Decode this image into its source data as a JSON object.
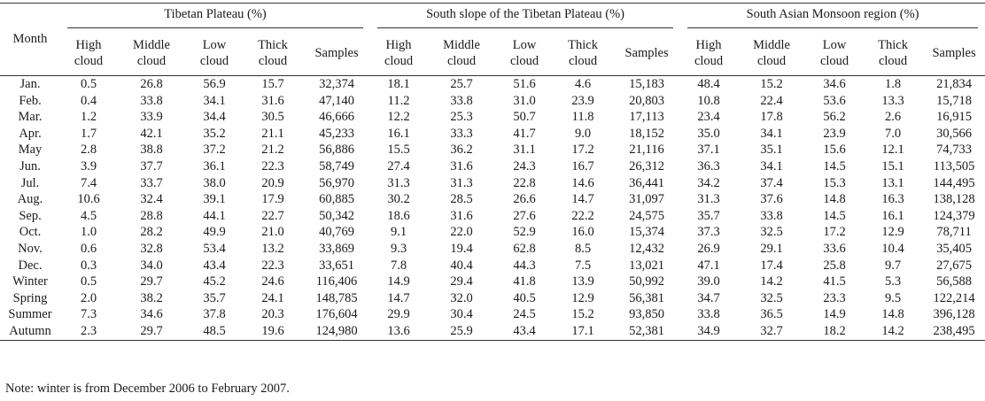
{
  "header": {
    "month": "Month",
    "groups": [
      "Tibetan Plateau (%)",
      "South slope of the Tibetan Plateau (%)",
      "South Asian Monsoon region (%)"
    ],
    "columns": [
      [
        "High",
        "cloud"
      ],
      [
        "Middle",
        "cloud"
      ],
      [
        "Low",
        "cloud"
      ],
      [
        "Thick",
        "cloud"
      ],
      [
        "Samples",
        ""
      ]
    ]
  },
  "rows": [
    {
      "month": "Jan.",
      "values": [
        "0.5",
        "26.8",
        "56.9",
        "15.7",
        "32,374",
        "18.1",
        "25.7",
        "51.6",
        "4.6",
        "15,183",
        "48.4",
        "15.2",
        "34.6",
        "1.8",
        "21,834"
      ]
    },
    {
      "month": "Feb.",
      "values": [
        "0.4",
        "33.8",
        "34.1",
        "31.6",
        "47,140",
        "11.2",
        "33.8",
        "31.0",
        "23.9",
        "20,803",
        "10.8",
        "22.4",
        "53.6",
        "13.3",
        "15,718"
      ]
    },
    {
      "month": "Mar.",
      "values": [
        "1.2",
        "33.9",
        "34.4",
        "30.5",
        "46,666",
        "12.2",
        "25.3",
        "50.7",
        "11.8",
        "17,113",
        "23.4",
        "17.8",
        "56.2",
        "2.6",
        "16,915"
      ]
    },
    {
      "month": "Apr.",
      "values": [
        "1.7",
        "42.1",
        "35.2",
        "21.1",
        "45,233",
        "16.1",
        "33.3",
        "41.7",
        "9.0",
        "18,152",
        "35.0",
        "34.1",
        "23.9",
        "7.0",
        "30,566"
      ]
    },
    {
      "month": "May",
      "values": [
        "2.8",
        "38.8",
        "37.2",
        "21.2",
        "56,886",
        "15.5",
        "36.2",
        "31.1",
        "17.2",
        "21,116",
        "37.1",
        "35.1",
        "15.6",
        "12.1",
        "74,733"
      ]
    },
    {
      "month": "Jun.",
      "values": [
        "3.9",
        "37.7",
        "36.1",
        "22.3",
        "58,749",
        "27.4",
        "31.6",
        "24.3",
        "16.7",
        "26,312",
        "36.3",
        "34.1",
        "14.5",
        "15.1",
        "113,505"
      ]
    },
    {
      "month": "Jul.",
      "values": [
        "7.4",
        "33.7",
        "38.0",
        "20.9",
        "56,970",
        "31.3",
        "31.3",
        "22.8",
        "14.6",
        "36,441",
        "34.2",
        "37.4",
        "15.3",
        "13.1",
        "144,495"
      ]
    },
    {
      "month": "Aug.",
      "values": [
        "10.6",
        "32.4",
        "39.1",
        "17.9",
        "60,885",
        "30.2",
        "28.5",
        "26.6",
        "14.7",
        "31,097",
        "31.3",
        "37.6",
        "14.8",
        "16.3",
        "138,128"
      ]
    },
    {
      "month": "Sep.",
      "values": [
        "4.5",
        "28.8",
        "44.1",
        "22.7",
        "50,342",
        "18.6",
        "31.6",
        "27.6",
        "22.2",
        "24,575",
        "35.7",
        "33.8",
        "14.5",
        "16.1",
        "124,379"
      ]
    },
    {
      "month": "Oct.",
      "values": [
        "1.0",
        "28.2",
        "49.9",
        "21.0",
        "40,769",
        "9.1",
        "22.0",
        "52.9",
        "16.0",
        "15,374",
        "37.3",
        "32.5",
        "17.2",
        "12.9",
        "78,711"
      ]
    },
    {
      "month": "Nov.",
      "values": [
        "0.6",
        "32.8",
        "53.4",
        "13.2",
        "33,869",
        "9.3",
        "19.4",
        "62.8",
        "8.5",
        "12,432",
        "26.9",
        "29.1",
        "33.6",
        "10.4",
        "35,405"
      ]
    },
    {
      "month": "Dec.",
      "values": [
        "0.3",
        "34.0",
        "43.4",
        "22.3",
        "33,651",
        "7.8",
        "40.4",
        "44.3",
        "7.5",
        "13,021",
        "47.1",
        "17.4",
        "25.8",
        "9.7",
        "27,675"
      ]
    },
    {
      "month": "Winter",
      "values": [
        "0.5",
        "29.7",
        "45.2",
        "24.6",
        "116,406",
        "14.9",
        "29.4",
        "41.8",
        "13.9",
        "50,992",
        "39.0",
        "14.2",
        "41.5",
        "5.3",
        "56,588"
      ]
    },
    {
      "month": "Spring",
      "values": [
        "2.0",
        "38.2",
        "35.7",
        "24.1",
        "148,785",
        "14.7",
        "32.0",
        "40.5",
        "12.9",
        "56,381",
        "34.7",
        "32.5",
        "23.3",
        "9.5",
        "122,214"
      ]
    },
    {
      "month": "Summer",
      "values": [
        "7.3",
        "34.6",
        "37.8",
        "20.3",
        "176,604",
        "29.9",
        "30.4",
        "24.5",
        "15.2",
        "93,850",
        "33.8",
        "36.5",
        "14.9",
        "14.8",
        "396,128"
      ]
    },
    {
      "month": "Autumn",
      "values": [
        "2.3",
        "29.7",
        "48.5",
        "19.6",
        "124,980",
        "13.6",
        "25.9",
        "43.4",
        "17.1",
        "52,381",
        "34.9",
        "32.7",
        "18.2",
        "14.2",
        "238,495"
      ]
    }
  ],
  "note": "Note: winter is from December 2006 to February 2007."
}
